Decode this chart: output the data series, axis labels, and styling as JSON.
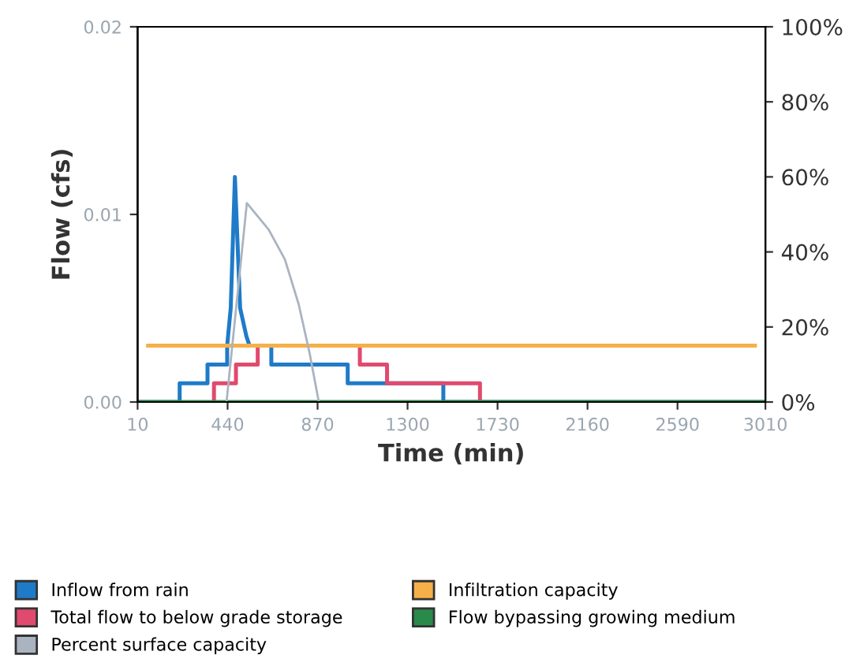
{
  "chart_data": {
    "type": "line",
    "xlabel": "Time (min)",
    "ylabel": "Flow (cfs)",
    "xlim": [
      10,
      3010
    ],
    "xticks": [
      10,
      440,
      870,
      1300,
      1730,
      2160,
      2590,
      3010
    ],
    "ylim": [
      0,
      0.02
    ],
    "yticks": [
      {
        "value": 0,
        "label": "0.00"
      },
      {
        "value": 0.01,
        "label": "0.01"
      },
      {
        "value": 0.02,
        "label": "0.02"
      }
    ],
    "y2lim": [
      0,
      100
    ],
    "y2ticks": [
      {
        "value": 0,
        "label": "0%"
      },
      {
        "value": 20,
        "label": "20%"
      },
      {
        "value": 40,
        "label": "40%"
      },
      {
        "value": 60,
        "label": "60%"
      },
      {
        "value": 80,
        "label": "80%"
      },
      {
        "value": 100,
        "label": "100%"
      }
    ],
    "grid": false,
    "legend": "bottom",
    "marker": "none",
    "line_style": "solid",
    "series": [
      {
        "name": "Inflow from rain",
        "color": "#1f7bc8",
        "x": [
          10,
          211,
          211,
          344,
          344,
          438,
          438,
          455,
          475,
          500,
          530,
          545,
          649,
          649,
          1014,
          1014,
          1471,
          1471,
          3010
        ],
        "values": [
          0,
          0,
          0.001,
          0.001,
          0.002,
          0.002,
          0.003,
          0.005,
          0.012,
          0.005,
          0.0035,
          0.003,
          0.003,
          0.002,
          0.002,
          0.001,
          0.001,
          0,
          0
        ]
      },
      {
        "name": "Total flow to below grade storage",
        "color": "#e04a6e",
        "x": [
          375,
          375,
          480,
          480,
          584,
          584,
          1072,
          1072,
          1202,
          1202,
          1646,
          1646
        ],
        "values": [
          0,
          0.001,
          0.001,
          0.002,
          0.002,
          0.003,
          0.003,
          0.002,
          0.002,
          0.001,
          0.001,
          0
        ]
      },
      {
        "name": "Percent surface capacity",
        "color": "#aab4c0",
        "axis": "y2",
        "x": [
          435,
          532,
          636,
          714,
          780,
          832,
          876
        ],
        "values": [
          0,
          53,
          46,
          38,
          26,
          13,
          0
        ]
      },
      {
        "name": "Infiltration capacity",
        "color": "#f5b04a",
        "x": [
          60,
          2960
        ],
        "values": [
          0.003,
          0.003
        ]
      },
      {
        "name": "Flow bypassing growing medium",
        "color": "#2a8a4a",
        "x": [
          10,
          3010
        ],
        "values": [
          0,
          0
        ]
      }
    ]
  }
}
